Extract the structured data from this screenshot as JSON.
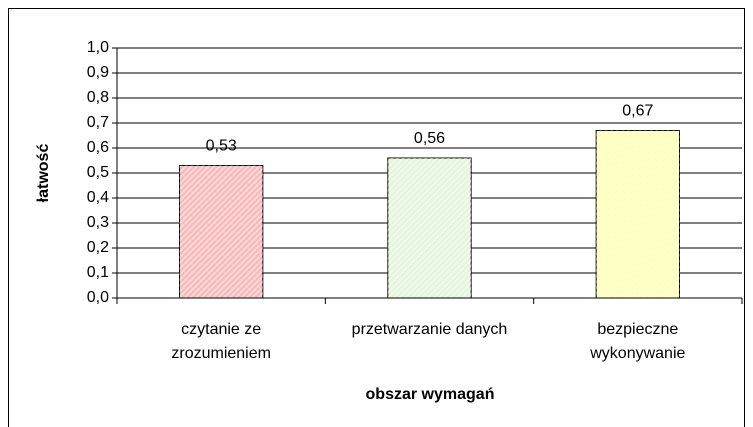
{
  "chart_data": {
    "type": "bar",
    "xlabel": "obszar wymagań",
    "ylabel": "łatwość",
    "categories": [
      "czytanie ze zrozumieniem",
      "przetwarzanie danych",
      "bezpieczne wykonywanie"
    ],
    "values": [
      0.53,
      0.56,
      0.67
    ],
    "value_labels": [
      "0,53",
      "0,56",
      "0,67"
    ],
    "colors": [
      "#f7b8b8",
      "#e4f5dc",
      "#ffffb4"
    ],
    "ylim": [
      0,
      1
    ],
    "yticks": [
      {
        "value": 0,
        "label": "0,0"
      },
      {
        "value": 0.1,
        "label": "0,1"
      },
      {
        "value": 0.2,
        "label": "0,2"
      },
      {
        "value": 0.3,
        "label": "0,3"
      },
      {
        "value": 0.4,
        "label": "0,4"
      },
      {
        "value": 0.5,
        "label": "0,5"
      },
      {
        "value": 0.6,
        "label": "0,6"
      },
      {
        "value": 0.7,
        "label": "0,7"
      },
      {
        "value": 0.8,
        "label": "0,8"
      },
      {
        "value": 0.9,
        "label": "0,9"
      },
      {
        "value": 1,
        "label": "1,0"
      }
    ],
    "grid": true
  }
}
